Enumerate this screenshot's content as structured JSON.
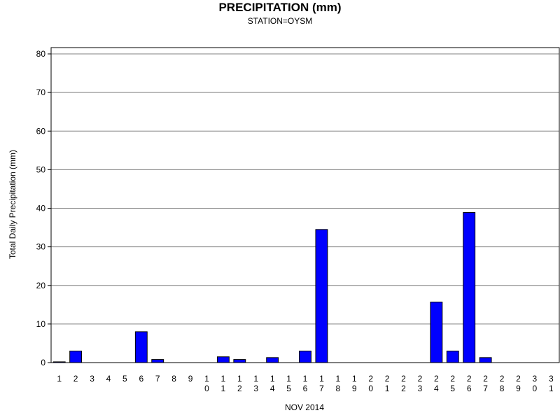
{
  "chart_data": {
    "type": "bar",
    "title": "PRECIPITATION (mm)",
    "subtitle": "STATION=OYSM",
    "xlabel": "NOV 2014",
    "ylabel": "Total Daily Precipitation (mm)",
    "ylim": [
      0,
      80
    ],
    "yticks": [
      0,
      10,
      20,
      30,
      40,
      50,
      60,
      70,
      80
    ],
    "grid": true,
    "bar_color": "#0000ff",
    "categories": [
      "1",
      "2",
      "3",
      "4",
      "5",
      "6",
      "7",
      "8",
      "9",
      "10",
      "11",
      "12",
      "13",
      "14",
      "15",
      "16",
      "17",
      "18",
      "19",
      "20",
      "21",
      "22",
      "23",
      "24",
      "25",
      "26",
      "27",
      "28",
      "29",
      "30",
      "31"
    ],
    "values": [
      0.2,
      3.0,
      0,
      0,
      0,
      8.0,
      0.8,
      0,
      0,
      0,
      1.5,
      0.8,
      0,
      1.3,
      0,
      3.0,
      34.5,
      0,
      0,
      0,
      0,
      0,
      0,
      15.7,
      3.0,
      38.9,
      1.3,
      0,
      0,
      0,
      0
    ]
  }
}
